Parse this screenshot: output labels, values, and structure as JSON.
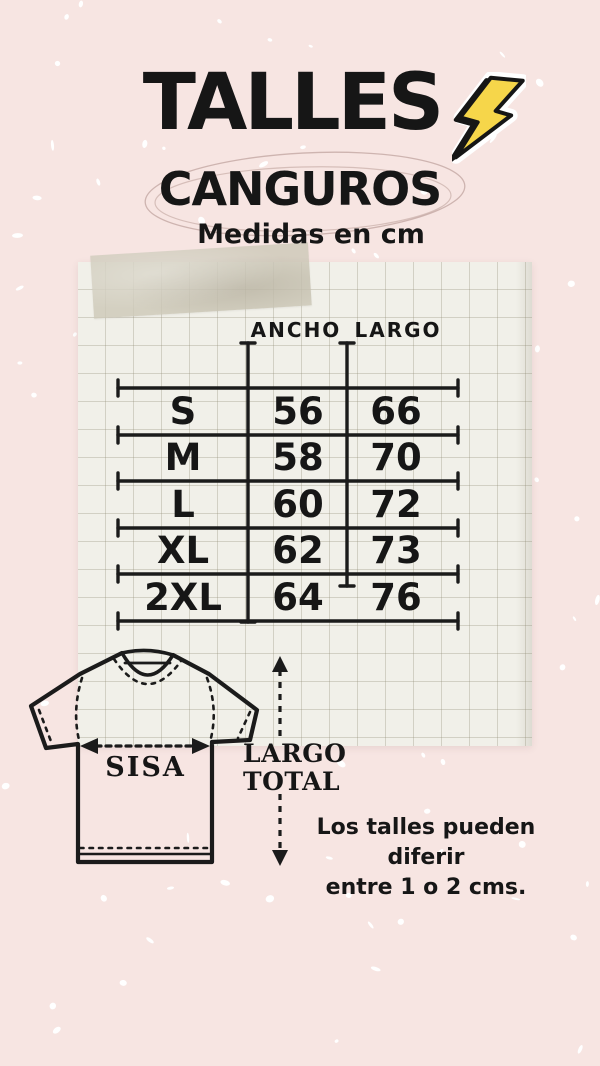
{
  "header": {
    "title": "TALLES",
    "title_icon": "lightning-bolt",
    "subtitle": "CANGUROS",
    "tagline": "Medidas en cm"
  },
  "size_table": {
    "columns": [
      "ANCHO",
      "LARGO"
    ],
    "rows": [
      {
        "size": "S",
        "ancho": "56",
        "largo": "66"
      },
      {
        "size": "M",
        "ancho": "58",
        "largo": "70"
      },
      {
        "size": "L",
        "ancho": "60",
        "largo": "72"
      },
      {
        "size": "XL",
        "ancho": "62",
        "largo": "73"
      },
      {
        "size": "2XL",
        "ancho": "64",
        "largo": "76"
      }
    ]
  },
  "diagram": {
    "width_arrow_label": "SISA",
    "length_arrow_label_line1": "LARGO",
    "length_arrow_label_line2": "TOTAL"
  },
  "note": {
    "line1": "Los talles pueden diferir",
    "line2": "entre 1 o 2 cms."
  },
  "colors": {
    "background": "#f7e5e2",
    "paper": "#f1f0e9",
    "ink": "#161616",
    "accent_yellow": "#f6d64a"
  }
}
